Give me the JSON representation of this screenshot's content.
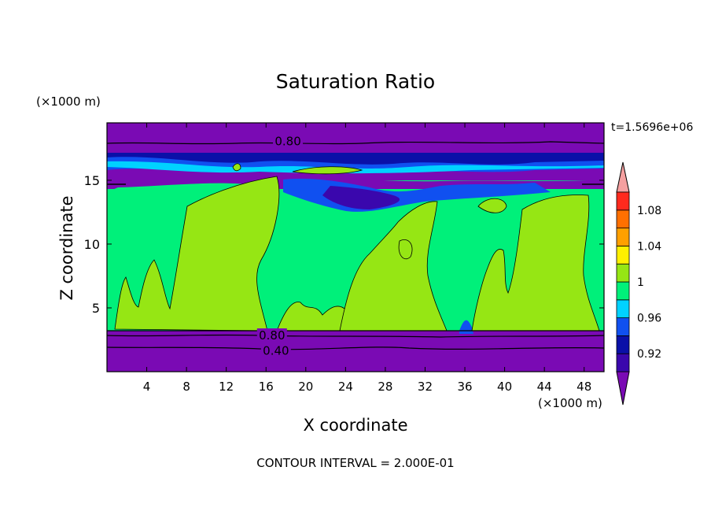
{
  "chart_data": {
    "type": "heatmap",
    "title": "Saturation Ratio",
    "xlabel": "X coordinate",
    "ylabel": "Z coordinate",
    "x_unit": "(×1000 m)",
    "y_unit": "(×1000 m)",
    "time_label": "t=1.5696e+06",
    "footer": "CONTOUR INTERVAL = 2.000E-01",
    "xlim": [
      0,
      50
    ],
    "ylim": [
      0,
      19.5
    ],
    "x_ticks": [
      4,
      8,
      12,
      16,
      20,
      24,
      28,
      32,
      36,
      40,
      44,
      48
    ],
    "y_ticks": [
      5,
      10,
      15
    ],
    "grid": false,
    "contour_labels": [
      {
        "text": "0.80",
        "x": 18.2,
        "z": 18.1
      },
      {
        "text": "0.80",
        "x": 16.6,
        "z": 2.9
      },
      {
        "text": "0.40",
        "x": 17.0,
        "z": 1.7
      }
    ],
    "colorbar": {
      "bands": [
        {
          "lower": null,
          "upper": 0.9,
          "color": "#7a0ab4"
        },
        {
          "lower": 0.9,
          "upper": 0.92,
          "color": "#3a07ad"
        },
        {
          "lower": 0.92,
          "upper": 0.94,
          "color": "#0a10a8"
        },
        {
          "lower": 0.94,
          "upper": 0.96,
          "color": "#1050f0"
        },
        {
          "lower": 0.96,
          "upper": 0.98,
          "color": "#00d2ff"
        },
        {
          "lower": 0.98,
          "upper": 1.0,
          "color": "#00f07a"
        },
        {
          "lower": 1.0,
          "upper": 1.02,
          "color": "#96e614"
        },
        {
          "lower": 1.02,
          "upper": 1.04,
          "color": "#fff000"
        },
        {
          "lower": 1.04,
          "upper": 1.06,
          "color": "#ffa000"
        },
        {
          "lower": 1.06,
          "upper": 1.08,
          "color": "#ff7000"
        },
        {
          "lower": 1.08,
          "upper": 1.1,
          "color": "#ff2a1e"
        },
        {
          "lower": 1.1,
          "upper": null,
          "color": "#f5a0a0"
        }
      ],
      "tick_labels": [
        "0.92",
        "0.96",
        "1",
        "1.04",
        "1.08"
      ]
    },
    "regions": [
      {
        "z_from": 0,
        "z_to": 3.3,
        "value": "<0.90"
      },
      {
        "z_from": 3.3,
        "z_to": 14.2,
        "value": "0.98–1.00 with 1.00–1.02 cells"
      },
      {
        "z_from": 14.2,
        "z_to": 17.3,
        "value": "0.90–0.98 mixed layers"
      },
      {
        "z_from": 17.3,
        "z_to": 19.5,
        "value": "<0.90"
      }
    ]
  }
}
